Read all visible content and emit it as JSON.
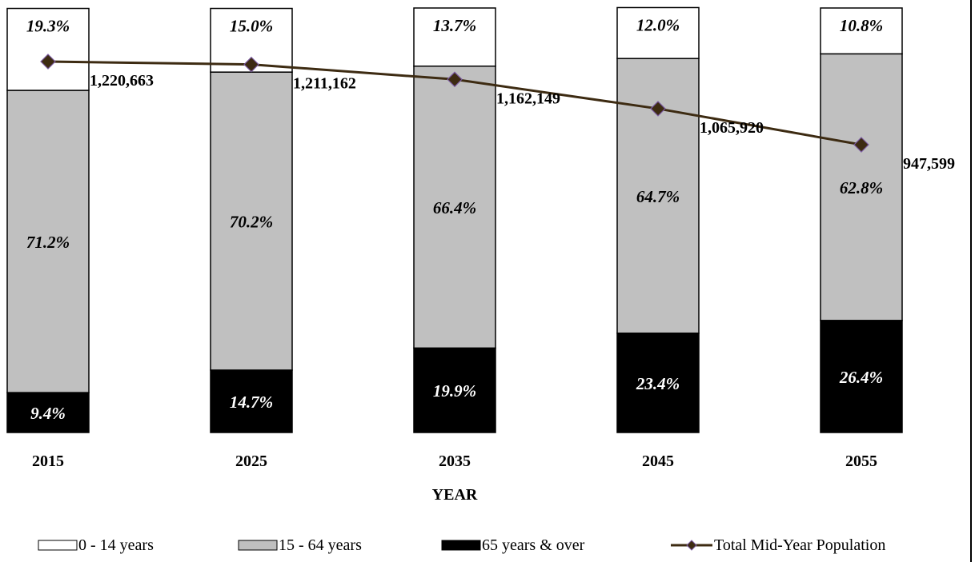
{
  "chart_data": {
    "type": "bar",
    "stacked": true,
    "categories": [
      "2015",
      "2025",
      "2035",
      "2045",
      "2055"
    ],
    "xlabel": "YEAR",
    "ylim": [
      0,
      100
    ],
    "grid": false,
    "legend_position": "bottom",
    "series": [
      {
        "name": "65 years  &  over",
        "values": [
          9.4,
          14.7,
          19.9,
          23.4,
          26.4
        ],
        "labels": [
          "9.4%",
          "14.7%",
          "19.9%",
          "23.4%",
          "26.4%"
        ],
        "color": "#000000",
        "label_color": "#ffffff"
      },
      {
        "name": "15  -  64 years",
        "values": [
          71.2,
          70.2,
          66.4,
          64.7,
          62.8
        ],
        "labels": [
          "71.2%",
          "70.2%",
          "66.4%",
          "64.7%",
          "62.8%"
        ],
        "color": "#c0c0c0",
        "label_color": "#000000"
      },
      {
        "name": "0  -  14 years",
        "values": [
          19.3,
          15.0,
          13.7,
          12.0,
          10.8
        ],
        "labels": [
          "19.3%",
          "15.0%",
          "13.7%",
          "12.0%",
          "10.8%"
        ],
        "color": "#ffffff",
        "label_color": "#000000"
      }
    ],
    "line_series": {
      "name": "Total Mid-Year Population",
      "values": [
        1220663,
        1211162,
        1162149,
        1065920,
        947599
      ],
      "labels": [
        "1,220,663",
        "1,211,162",
        "1,162,149",
        "1,065,920",
        "947,599"
      ],
      "line_color": "#3d2b12",
      "marker_color": "#3d2b12",
      "marker_outline": "#7a5aa0",
      "marker": "diamond"
    }
  }
}
